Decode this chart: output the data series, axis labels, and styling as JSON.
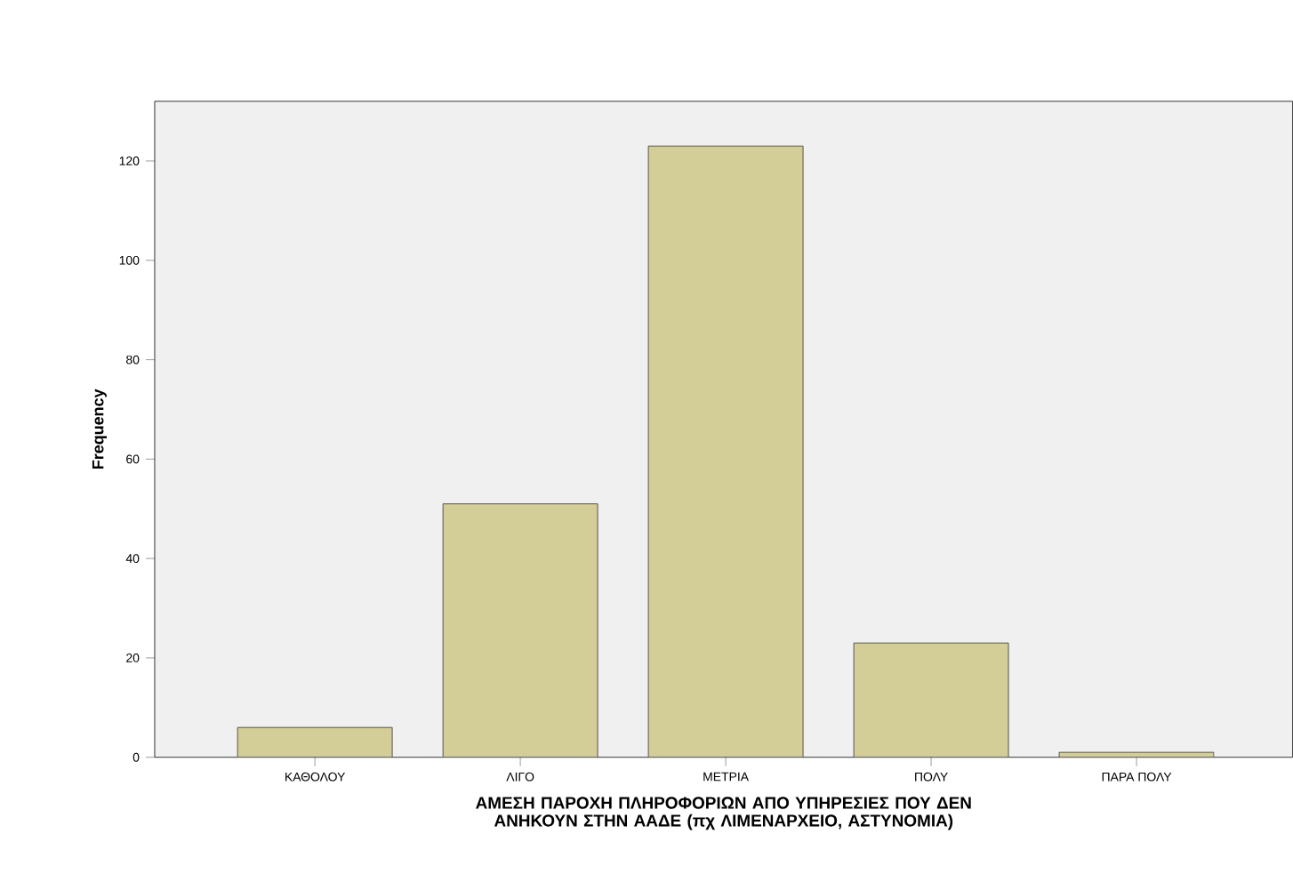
{
  "chart_data": {
    "type": "bar",
    "xlabel": "ΑΜΕΣΗ ΠΑΡΟΧΗ ΠΛΗΡΟΦΟΡΙΩΝ ΑΠΟ ΥΠΗΡΕΣΙΕΣ ΠΟΥ ΔΕΝ ΑΝΗΚΟΥΝ ΣΤΗΝ ΑΑΔΕ (πχ ΛΙΜΕΝΑΡΧΕΙΟ, ΑΣΤΥΝΟΜΙΑ)",
    "ylabel": "Frequency",
    "categories": [
      "ΚΑΘΟΛΟΥ",
      "ΛΙΓΟ",
      "ΜΕΤΡΙΑ",
      "ΠΟΛΥ",
      "ΠΑΡΑ ΠΟΛΥ"
    ],
    "values": [
      6,
      51,
      123,
      23,
      1
    ],
    "color": "#d3cd97",
    "ylim": [
      0,
      132
    ],
    "yticks": [
      0,
      20,
      40,
      60,
      80,
      100,
      120
    ]
  }
}
